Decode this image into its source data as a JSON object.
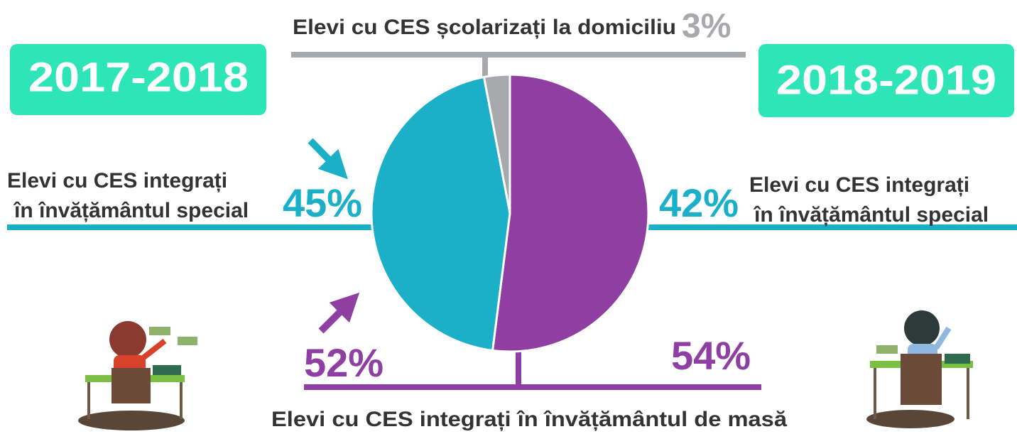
{
  "chart_data": {
    "type": "pie",
    "categories": [
      "Elevi cu CES școlarizați la domiciliu",
      "Elevi cu CES integrați\nîn învățământul special",
      "Elevi cu CES integrați în învățământul de masă"
    ],
    "colors": [
      "#a7a9ac",
      "#1cb0c8",
      "#8e3fa1"
    ],
    "series": [
      {
        "name": "2017-2018",
        "values": [
          3,
          45,
          52
        ],
        "value_labels": [
          "3%",
          "45%",
          "52%"
        ]
      },
      {
        "name": "2018-2019",
        "values": [
          null,
          42,
          54
        ],
        "value_labels": [
          null,
          "42%",
          "54%"
        ]
      }
    ]
  }
}
